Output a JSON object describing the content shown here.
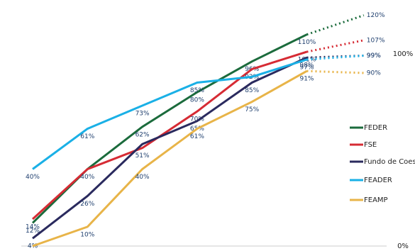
{
  "chart_data": {
    "type": "line",
    "categories": [
      null,
      null,
      null,
      null,
      null,
      null,
      null
    ],
    "ylim": [
      0,
      125
    ],
    "yticks": [
      {
        "value": 0,
        "label": "0%"
      },
      {
        "value": 100,
        "label": "100%"
      }
    ],
    "dotted_last_segment": true,
    "series": [
      {
        "name": "FEDER",
        "color": "#1b6b3c",
        "values": [
          12,
          40,
          62,
          80,
          96,
          110,
          120
        ],
        "value_labels": [
          "12%",
          null,
          "62%",
          "80%",
          "96%",
          "110%",
          "120%"
        ]
      },
      {
        "name": "FSE",
        "color": "#d62b34",
        "values": [
          14,
          40,
          51,
          70,
          92,
          101,
          107
        ],
        "value_labels": [
          "14%",
          "40%",
          "51%",
          "70%",
          "92%",
          "101%",
          "107%"
        ]
      },
      {
        "name": "Fundo de Coesão",
        "color": "#2a2a5e",
        "values": [
          4,
          26,
          53,
          65,
          85,
          98,
          99
        ],
        "value_labels": [
          "4%",
          "26%",
          null,
          "65%",
          "85%",
          "98%",
          "99%"
        ]
      },
      {
        "name": "FEADER",
        "color": "#1ab0e6",
        "values": [
          40,
          61,
          73,
          85,
          88,
          97,
          99
        ],
        "value_labels": [
          "40%",
          "61%",
          "73%",
          "85%",
          null,
          "97%",
          "99%"
        ]
      },
      {
        "name": "FEAMP",
        "color": "#e8b448",
        "values": [
          0,
          10,
          40,
          61,
          75,
          91,
          90
        ],
        "value_labels": [
          "0%",
          "10%",
          "40%",
          "61%",
          "75%",
          "91%",
          "90%"
        ]
      }
    ]
  }
}
